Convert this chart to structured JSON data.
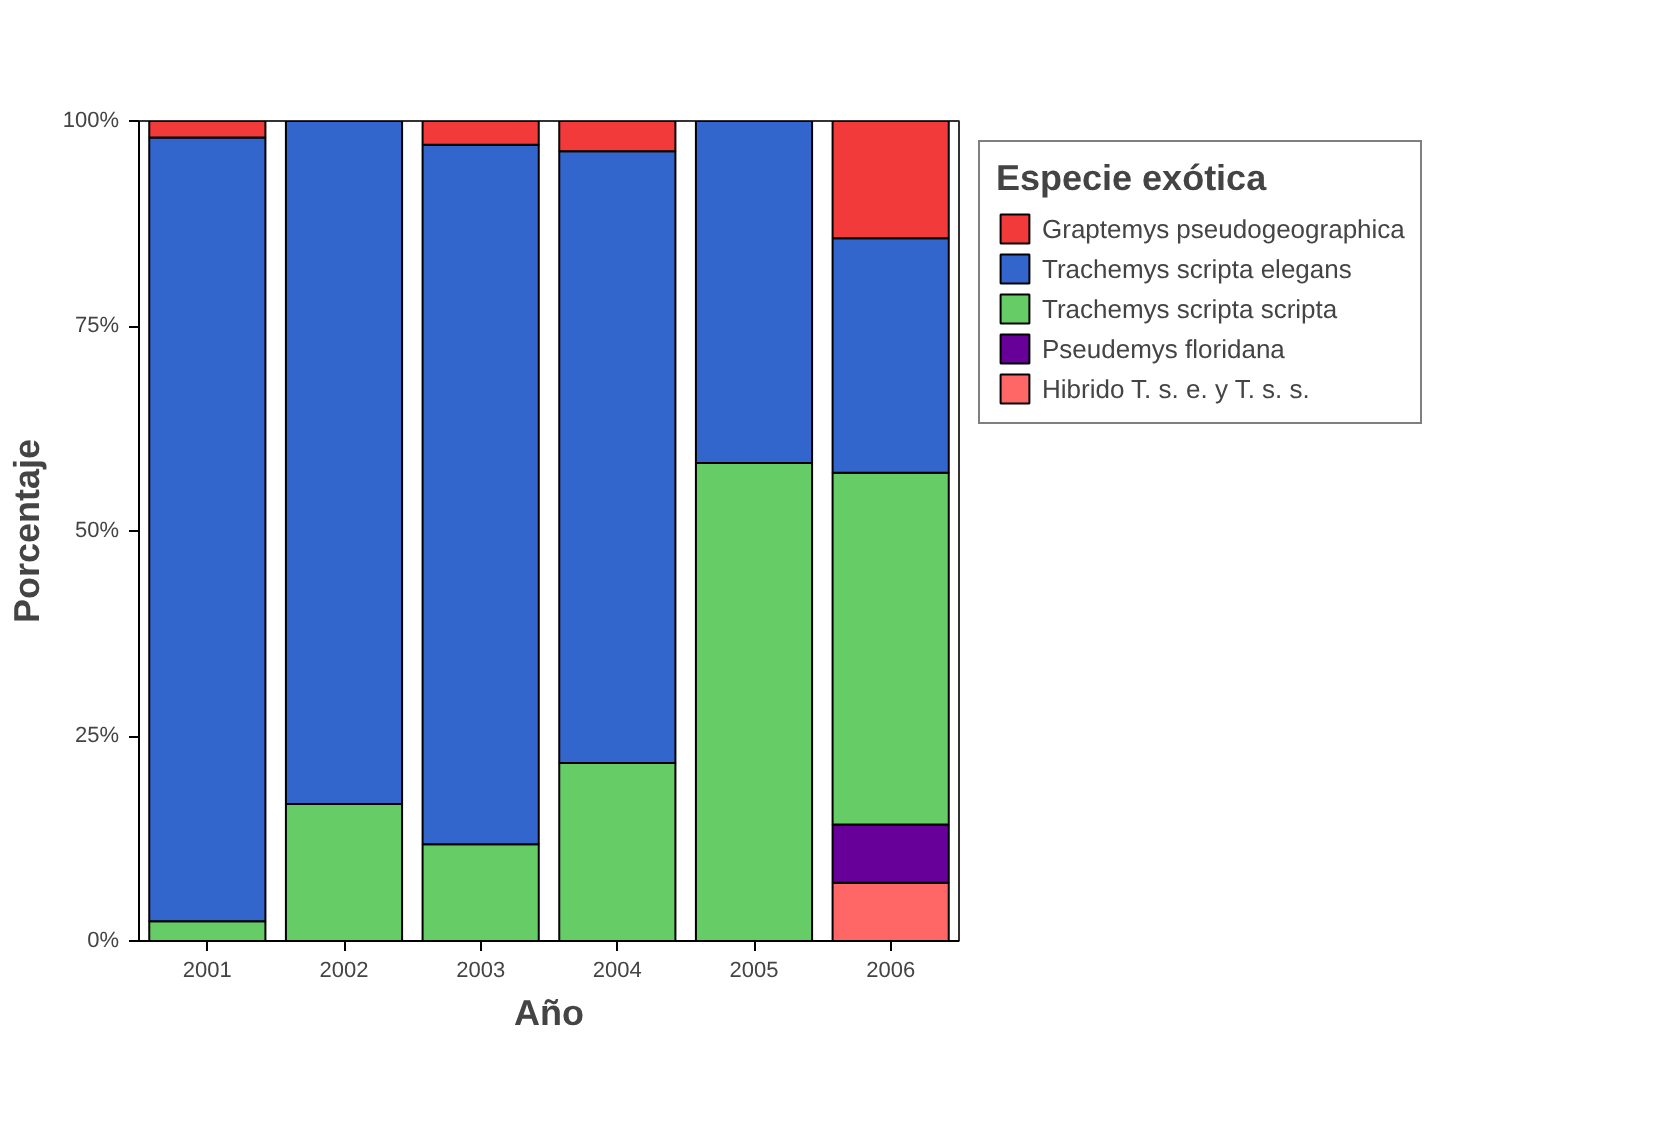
{
  "chart_data": {
    "type": "bar",
    "stacked": true,
    "xlabel": "Año",
    "ylabel": "Porcentaje",
    "legend_title": "Especie exótica",
    "legend": "top right",
    "categories": [
      "2001",
      "2002",
      "2003",
      "2004",
      "2005",
      "2006"
    ],
    "ylim": [
      0,
      100
    ],
    "yticks": [
      {
        "value": 0,
        "label": "0%"
      },
      {
        "value": 25,
        "label": "25%"
      },
      {
        "value": 50,
        "label": "50%"
      },
      {
        "value": 75,
        "label": "75%"
      },
      {
        "value": 100,
        "label": "100%"
      }
    ],
    "series": [
      {
        "name": "Hibrido T. s. e. y T. s. s.",
        "color": "#ff6666",
        "values": [
          0,
          0,
          0,
          0,
          0,
          7.1
        ]
      },
      {
        "name": "Pseudemys floridana",
        "color": "#660099",
        "values": [
          0,
          0,
          0,
          0,
          0,
          7.1
        ]
      },
      {
        "name": "Trachemys scripta scripta",
        "color": "#66cc66",
        "values": [
          2.4,
          16.7,
          11.8,
          21.7,
          58.3,
          42.9
        ]
      },
      {
        "name": "Trachemys scripta elegans",
        "color": "#3366cc",
        "values": [
          95.6,
          83.3,
          85.3,
          74.6,
          41.7,
          28.6
        ]
      },
      {
        "name": "Graptemys pseudogeographica",
        "color": "#f23a3a",
        "values": [
          2.0,
          0,
          2.9,
          3.7,
          0,
          14.3
        ]
      }
    ]
  }
}
